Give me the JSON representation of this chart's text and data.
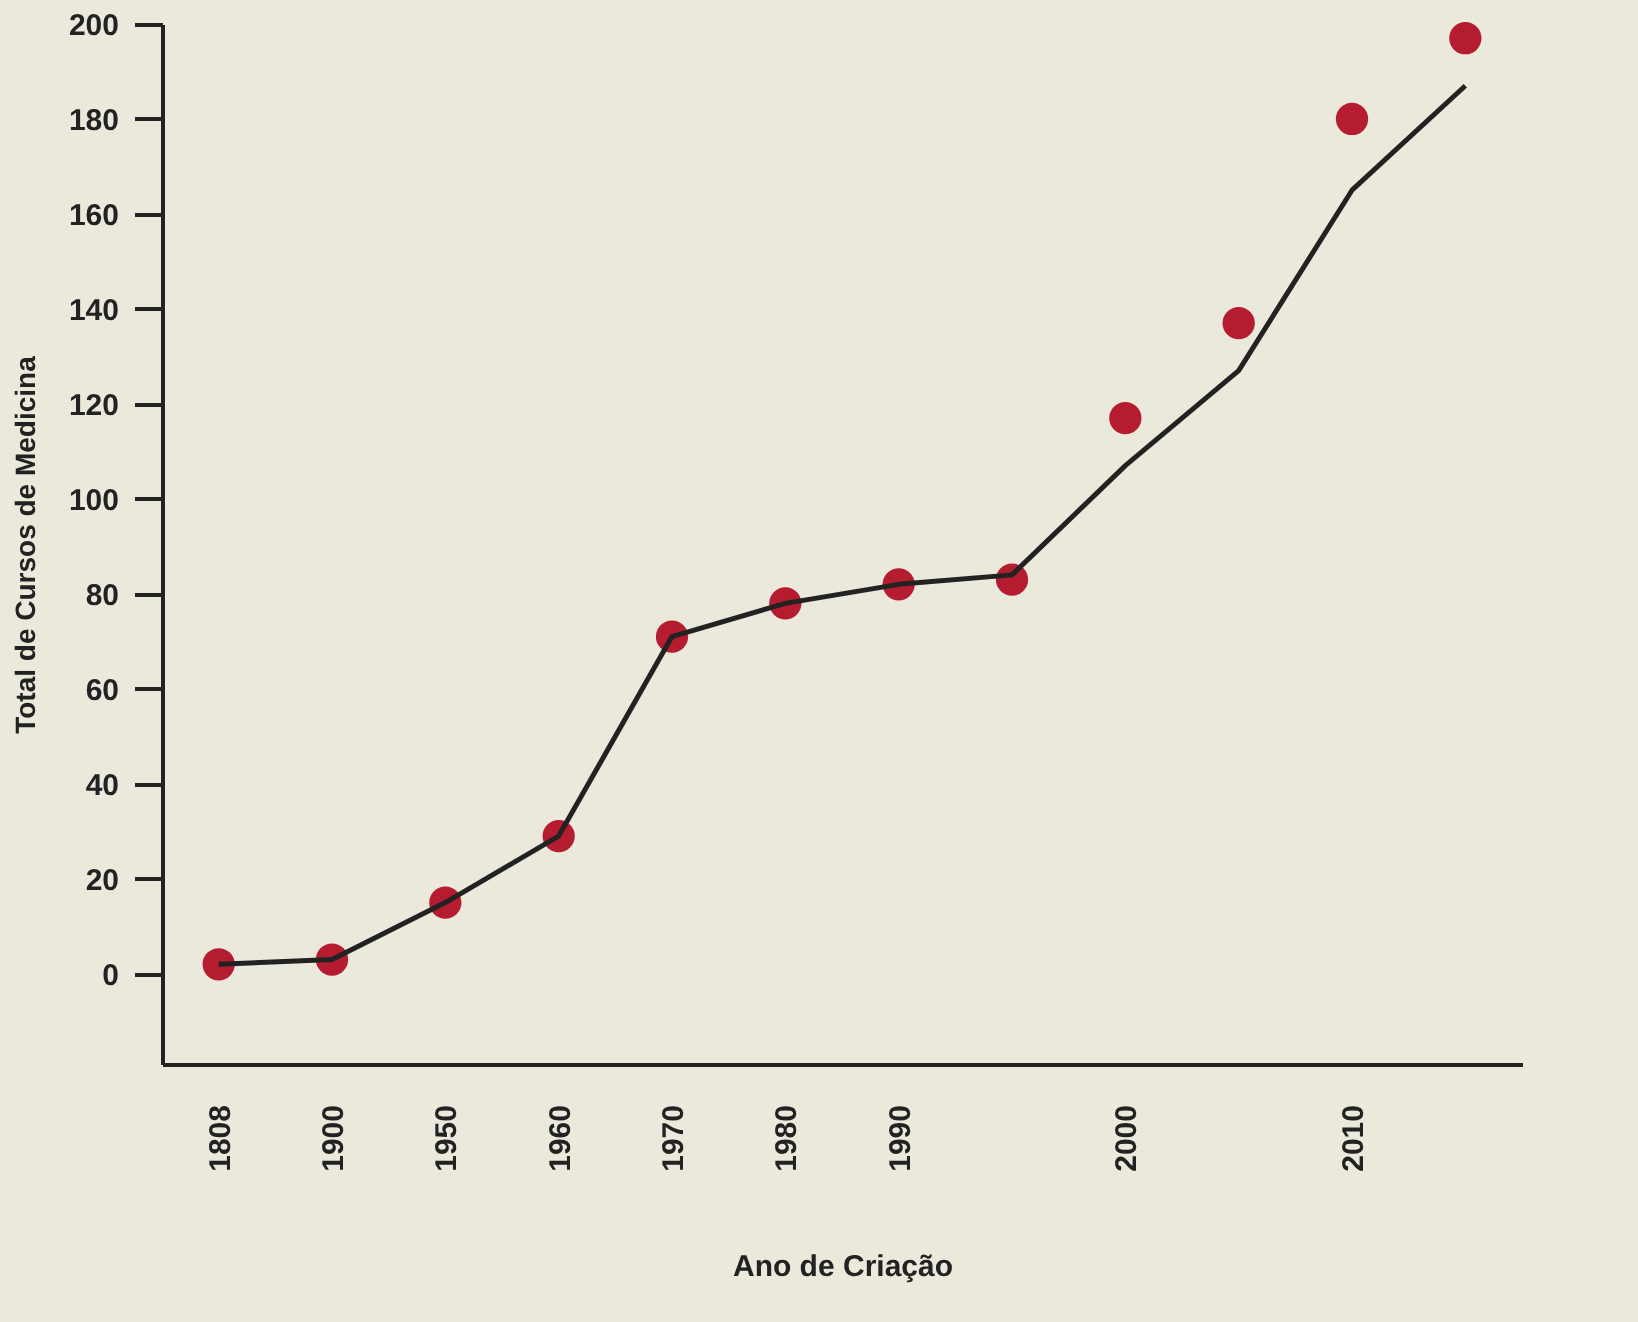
{
  "chart_data": {
    "type": "scatter",
    "xlabel": "Ano de Criação",
    "ylabel": "Total de Cursos de Medicina",
    "categories": [
      "1808",
      "1900",
      "1950",
      "1960",
      "1970",
      "1980",
      "1990",
      null,
      "2000",
      null,
      "2010",
      null
    ],
    "series": [
      {
        "color": "#b51c30",
        "values": [
          2,
          3,
          15,
          29,
          71,
          78,
          82,
          83,
          117,
          137,
          180,
          197
        ]
      },
      {
        "type": "line",
        "marker": "none",
        "color": "#222222",
        "values": [
          2,
          3,
          15,
          29,
          71,
          78,
          82,
          84,
          107,
          127,
          165,
          187
        ]
      }
    ],
    "ylim": [
      -19,
      200
    ],
    "yticks": [
      0,
      20,
      40,
      60,
      80,
      100,
      120,
      140,
      160,
      180,
      200
    ],
    "grid": false,
    "marker": "circle",
    "line_style": "solid"
  }
}
